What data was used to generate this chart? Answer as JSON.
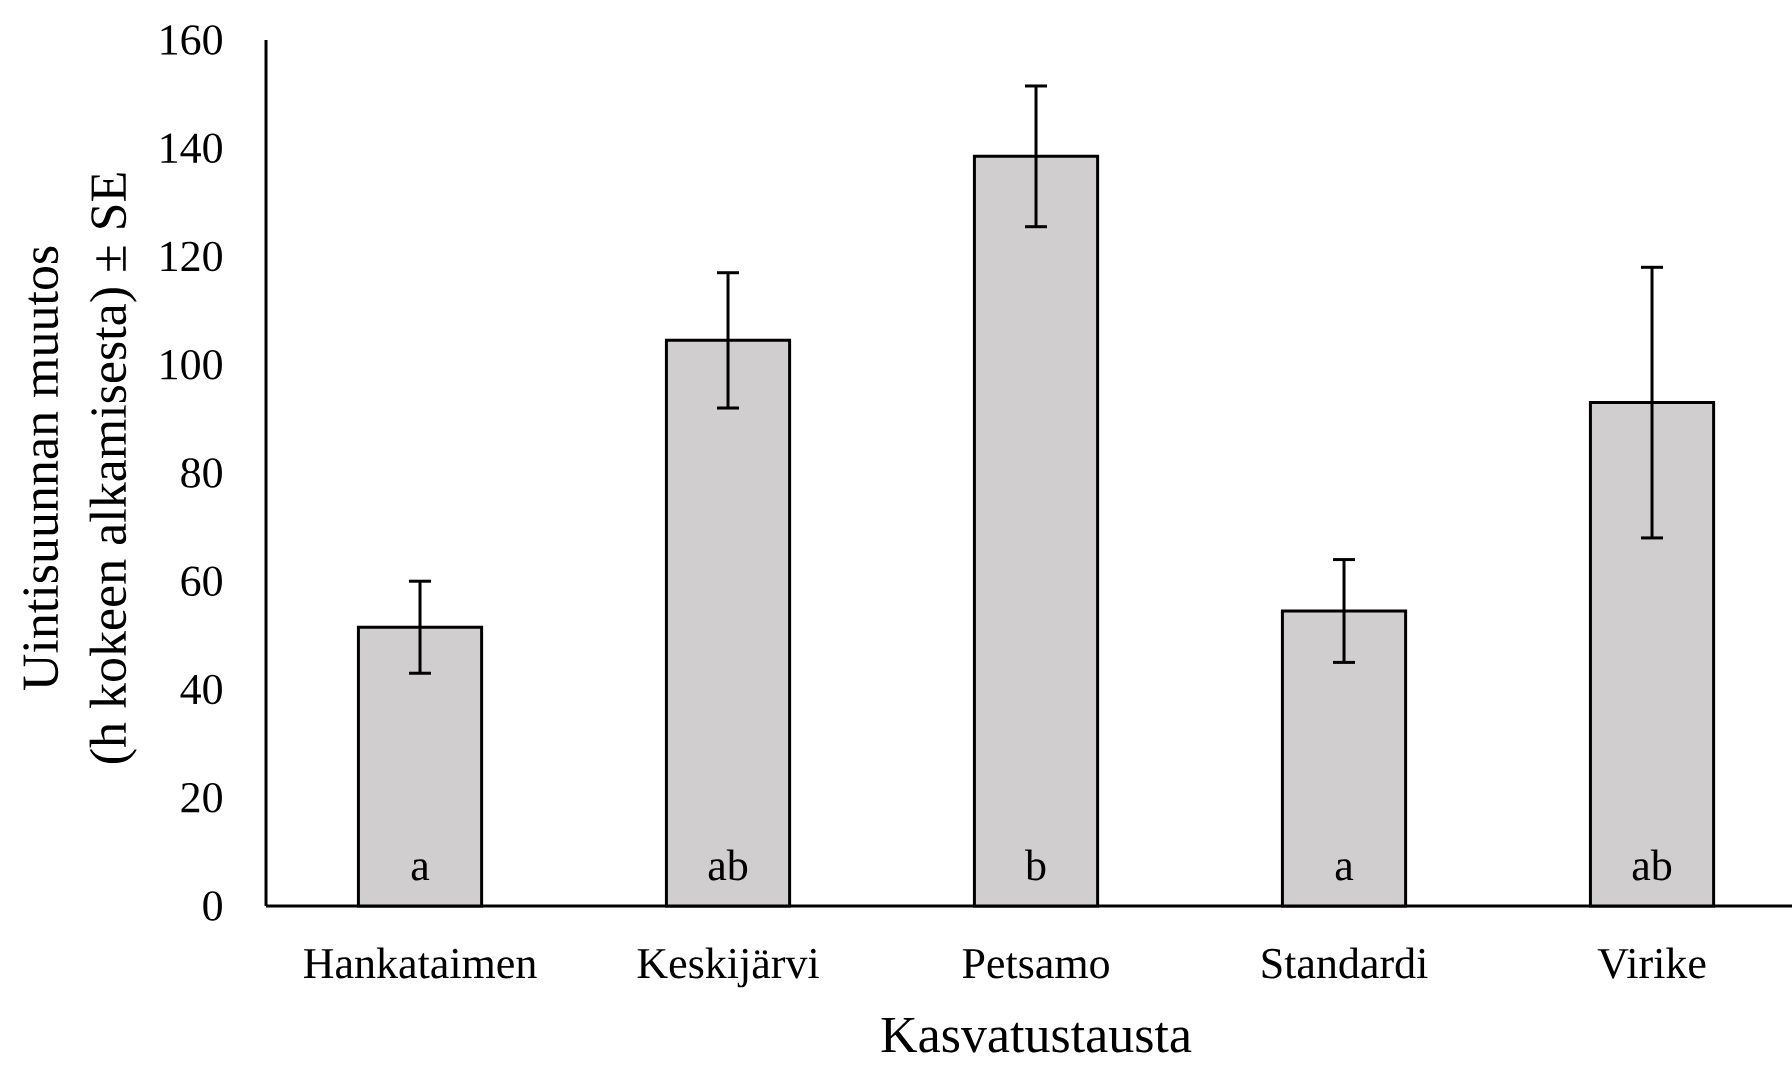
{
  "chart_data": {
    "type": "bar",
    "xlabel": "Kasvatustausta",
    "ylabel": "Uintisuunnan muutos (h kokeen alkamisesta) ± SE",
    "categories": [
      "Hankataimen",
      "Keskijärvi",
      "Petsamo",
      "Standardi",
      "Virike"
    ],
    "values": [
      51.5,
      104.5,
      138.5,
      54.5,
      93
    ],
    "errors": [
      8.5,
      12.5,
      13,
      9.5,
      25
    ],
    "color": "#d0cece",
    "ylim": [
      0,
      160
    ],
    "yticks": [
      0,
      20,
      40,
      60,
      80,
      100,
      120,
      140,
      160
    ],
    "annotations": [
      "a",
      "ab",
      "b",
      "a",
      "ab"
    ]
  }
}
